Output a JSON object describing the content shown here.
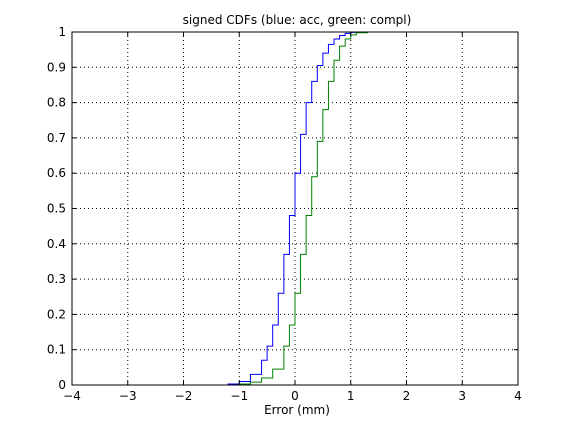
{
  "chart_data": {
    "type": "line",
    "title": "signed CDFs (blue: acc, green: compl)",
    "xlabel": "Error (mm)",
    "ylabel": "",
    "xlim": [
      -4,
      4
    ],
    "ylim": [
      0,
      1
    ],
    "xticks": [
      -4,
      -3,
      -2,
      -1,
      0,
      1,
      2,
      3,
      4
    ],
    "yticks": [
      0,
      0.1,
      0.2,
      0.3,
      0.4,
      0.5,
      0.6,
      0.7,
      0.8,
      0.9,
      1
    ],
    "xtick_labels": [
      "−4",
      "−3",
      "−2",
      "−1",
      "0",
      "1",
      "2",
      "3",
      "4"
    ],
    "ytick_labels": [
      "0",
      "0.1",
      "0.2",
      "0.3",
      "0.4",
      "0.5",
      "0.6",
      "0.7",
      "0.8",
      "0.9",
      "1"
    ],
    "grid": true,
    "series": [
      {
        "color": "#0000ff",
        "x": [
          -2.45,
          -1.6,
          -1.2,
          -1.0,
          -0.8,
          -0.6,
          -0.5,
          -0.4,
          -0.3,
          -0.2,
          -0.1,
          0.0,
          0.1,
          0.2,
          0.3,
          0.4,
          0.5,
          0.6,
          0.7,
          0.8,
          0.9,
          1.0,
          1.2,
          3.0
        ],
        "y": [
          0.0,
          0.0,
          0.003,
          0.01,
          0.03,
          0.07,
          0.11,
          0.17,
          0.26,
          0.37,
          0.48,
          0.6,
          0.71,
          0.8,
          0.86,
          0.905,
          0.94,
          0.965,
          0.98,
          0.99,
          0.996,
          0.999,
          1.0,
          1.0
        ]
      },
      {
        "color": "#008000",
        "x": [
          -2.45,
          -1.4,
          -1.0,
          -0.8,
          -0.6,
          -0.4,
          -0.2,
          -0.1,
          0.0,
          0.1,
          0.2,
          0.3,
          0.4,
          0.5,
          0.6,
          0.7,
          0.8,
          0.9,
          1.0,
          1.1,
          1.3,
          3.0
        ],
        "y": [
          0.0,
          0.0,
          0.003,
          0.008,
          0.02,
          0.045,
          0.11,
          0.17,
          0.26,
          0.37,
          0.48,
          0.59,
          0.69,
          0.78,
          0.86,
          0.92,
          0.96,
          0.98,
          0.992,
          0.998,
          1.0,
          1.0
        ]
      }
    ]
  }
}
